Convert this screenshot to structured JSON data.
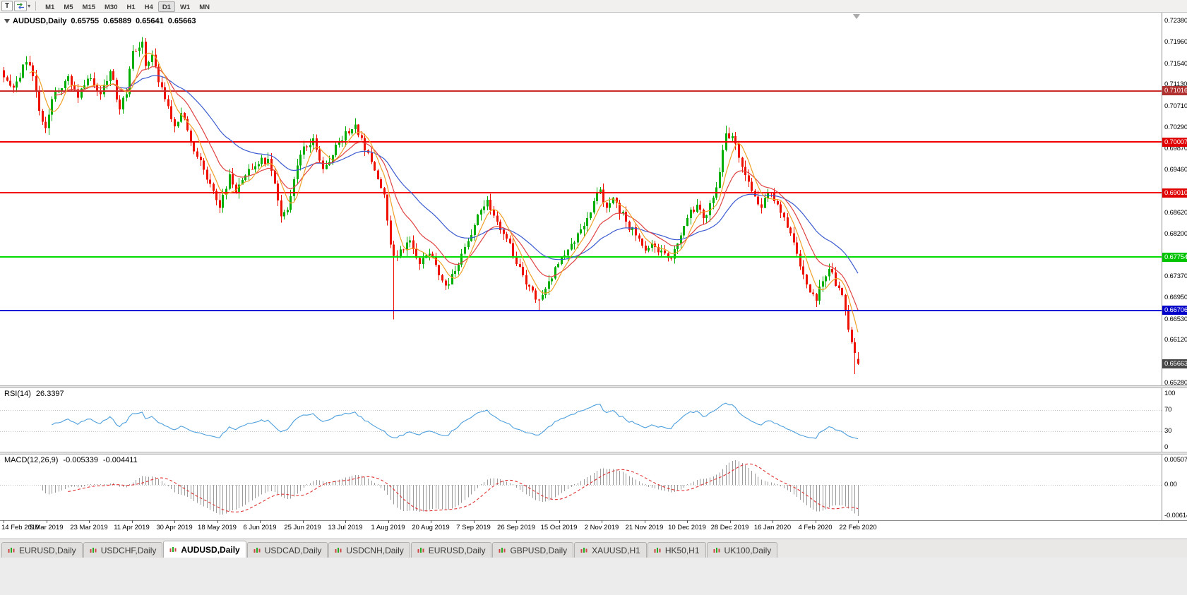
{
  "toolbar": {
    "t_button": "T",
    "timeframes": [
      "M1",
      "M5",
      "M15",
      "M30",
      "H1",
      "H4",
      "D1",
      "W1",
      "MN"
    ],
    "active_timeframe": "D1"
  },
  "chart": {
    "symbol_period": "AUDUSD,Daily",
    "open": "0.65755",
    "high": "0.65889",
    "low": "0.65641",
    "close": "0.65663"
  },
  "price_axis": {
    "ticks": [
      "0.72380",
      "0.71960",
      "0.71540",
      "0.71130",
      "0.70710",
      "0.70290",
      "0.69870",
      "0.69460",
      "0.69040",
      "0.68620",
      "0.68200",
      "0.67790",
      "0.67370",
      "0.66950",
      "0.66530",
      "0.66120",
      "0.65700",
      "0.65280"
    ]
  },
  "hlines": [
    {
      "price": 0.71016,
      "label": "0.71016",
      "line": "#cc2929",
      "bg": "#b03030"
    },
    {
      "price": 0.70007,
      "label": "0.70007",
      "line": "#f20000",
      "bg": "#e00000"
    },
    {
      "price": 0.6901,
      "label": "0.69010",
      "line": "#f20000",
      "bg": "#e00000"
    },
    {
      "price": 0.67754,
      "label": "0.67754",
      "line": "#00dc00",
      "bg": "#00c400"
    },
    {
      "price": 0.66706,
      "label": "0.66706",
      "line": "#0000d8",
      "bg": "#0000c8"
    }
  ],
  "current_price": {
    "price": 0.65663,
    "label": "0.65663",
    "bg": "#474747"
  },
  "dates": [
    "14 Feb 2019",
    "5 Mar 2019",
    "23 Mar 2019",
    "11 Apr 2019",
    "30 Apr 2019",
    "18 May 2019",
    "6 Jun 2019",
    "25 Jun 2019",
    "13 Jul 2019",
    "1 Aug 2019",
    "20 Aug 2019",
    "7 Sep 2019",
    "26 Sep 2019",
    "15 Oct 2019",
    "2 Nov 2019",
    "21 Nov 2019",
    "10 Dec 2019",
    "28 Dec 2019",
    "16 Jan 2020",
    "4 Feb 2020",
    "22 Feb 2020"
  ],
  "rsi_panel": {
    "name": "RSI(14)",
    "value": "26.3397",
    "levels": [
      {
        "v": 100,
        "label": "100"
      },
      {
        "v": 70,
        "label": "70"
      },
      {
        "v": 30,
        "label": "30"
      },
      {
        "v": 0,
        "label": "0"
      }
    ],
    "line_color": "#4d9fdd",
    "level_color": "#c6c6c6"
  },
  "macd_panel": {
    "name": "MACD(12,26,9)",
    "value_main": "-0.005339",
    "value_signal": "-0.004411",
    "axis_max": "0.005076",
    "axis_zero": "0.00",
    "axis_min": "-0.006148",
    "hist_color": "#9a9a9a",
    "signal_color": "#e03030"
  },
  "tabs": [
    {
      "label": "EURUSD,Daily",
      "active": false
    },
    {
      "label": "USDCHF,Daily",
      "active": false
    },
    {
      "label": "AUDUSD,Daily",
      "active": true
    },
    {
      "label": "USDCAD,Daily",
      "active": false
    },
    {
      "label": "USDCNH,Daily",
      "active": false
    },
    {
      "label": "EURUSD,Daily",
      "active": false
    },
    {
      "label": "GBPUSD,Daily",
      "active": false
    },
    {
      "label": "XAUUSD,H1",
      "active": false
    },
    {
      "label": "HK50,H1",
      "active": false
    },
    {
      "label": "UK100,Daily",
      "active": false
    }
  ],
  "chart_data": {
    "type": "candlestick",
    "symbol": "AUDUSD",
    "timeframe": "Daily",
    "n_candles": 266,
    "price_range": [
      0.6528,
      0.7238
    ],
    "colors": {
      "up": "#00ae00",
      "down": "#ee1100"
    },
    "date_labels": [
      "14 Feb 2019",
      "5 Mar 2019",
      "23 Mar 2019",
      "11 Apr 2019",
      "30 Apr 2019",
      "18 May 2019",
      "6 Jun 2019",
      "25 Jun 2019",
      "13 Jul 2019",
      "1 Aug 2019",
      "20 Aug 2019",
      "7 Sep 2019",
      "26 Sep 2019",
      "15 Oct 2019",
      "2 Nov 2019",
      "21 Nov 2019",
      "10 Dec 2019",
      "28 Dec 2019",
      "16 Jan 2020",
      "4 Feb 2020",
      "22 Feb 2020"
    ],
    "close_anchors": [
      [
        0,
        0.7128
      ],
      [
        3,
        0.7108
      ],
      [
        7,
        0.7158
      ],
      [
        9,
        0.713
      ],
      [
        11,
        0.7062
      ],
      [
        13,
        0.7028
      ],
      [
        16,
        0.71
      ],
      [
        20,
        0.713
      ],
      [
        23,
        0.7088
      ],
      [
        26,
        0.7125
      ],
      [
        30,
        0.7095
      ],
      [
        33,
        0.714
      ],
      [
        36,
        0.7065
      ],
      [
        38,
        0.7095
      ],
      [
        40,
        0.718
      ],
      [
        43,
        0.7198
      ],
      [
        44,
        0.715
      ],
      [
        46,
        0.7172
      ],
      [
        48,
        0.7118
      ],
      [
        50,
        0.7085
      ],
      [
        53,
        0.7032
      ],
      [
        55,
        0.7058
      ],
      [
        58,
        0.7002
      ],
      [
        61,
        0.6965
      ],
      [
        65,
        0.6905
      ],
      [
        67,
        0.6872
      ],
      [
        70,
        0.6938
      ],
      [
        72,
        0.6902
      ],
      [
        76,
        0.6948
      ],
      [
        79,
        0.6958
      ],
      [
        82,
        0.6968
      ],
      [
        84,
        0.692
      ],
      [
        86,
        0.6855
      ],
      [
        88,
        0.6868
      ],
      [
        90,
        0.6928
      ],
      [
        93,
        0.6992
      ],
      [
        96,
        0.7008
      ],
      [
        99,
        0.6948
      ],
      [
        102,
        0.6975
      ],
      [
        104,
        0.7002
      ],
      [
        106,
        0.7022
      ],
      [
        109,
        0.7035
      ],
      [
        112,
        0.6985
      ],
      [
        115,
        0.6945
      ],
      [
        118,
        0.6898
      ],
      [
        120,
        0.68
      ],
      [
        121,
        0.6778
      ],
      [
        123,
        0.679
      ],
      [
        126,
        0.6808
      ],
      [
        129,
        0.6762
      ],
      [
        132,
        0.6782
      ],
      [
        135,
        0.674
      ],
      [
        138,
        0.6722
      ],
      [
        140,
        0.6748
      ],
      [
        143,
        0.6795
      ],
      [
        146,
        0.6838
      ],
      [
        148,
        0.6868
      ],
      [
        150,
        0.6888
      ],
      [
        153,
        0.6845
      ],
      [
        156,
        0.6812
      ],
      [
        159,
        0.6762
      ],
      [
        161,
        0.674
      ],
      [
        164,
        0.671
      ],
      [
        166,
        0.6692
      ],
      [
        169,
        0.6728
      ],
      [
        172,
        0.6762
      ],
      [
        175,
        0.679
      ],
      [
        178,
        0.6822
      ],
      [
        181,
        0.6852
      ],
      [
        183,
        0.6885
      ],
      [
        185,
        0.6908
      ],
      [
        187,
        0.6872
      ],
      [
        189,
        0.6892
      ],
      [
        193,
        0.6845
      ],
      [
        196,
        0.6818
      ],
      [
        199,
        0.6788
      ],
      [
        201,
        0.6802
      ],
      [
        204,
        0.6788
      ],
      [
        207,
        0.6772
      ],
      [
        210,
        0.6818
      ],
      [
        212,
        0.6852
      ],
      [
        215,
        0.6878
      ],
      [
        217,
        0.6852
      ],
      [
        220,
        0.6892
      ],
      [
        222,
        0.6942
      ],
      [
        224,
        0.7018
      ],
      [
        227,
        0.6998
      ],
      [
        229,
        0.6952
      ],
      [
        232,
        0.6905
      ],
      [
        235,
        0.6872
      ],
      [
        237,
        0.6902
      ],
      [
        239,
        0.6885
      ],
      [
        241,
        0.6862
      ],
      [
        244,
        0.6822
      ],
      [
        246,
        0.6782
      ],
      [
        249,
        0.6722
      ],
      [
        252,
        0.669
      ],
      [
        254,
        0.6728
      ],
      [
        256,
        0.6752
      ],
      [
        259,
        0.6715
      ],
      [
        261,
        0.6672
      ],
      [
        263,
        0.6608
      ],
      [
        265,
        0.65663
      ]
    ],
    "wick_overrides": [
      {
        "i": 43,
        "high": 0.7207
      },
      {
        "i": 109,
        "high": 0.7048
      },
      {
        "i": 121,
        "low": 0.6653
      },
      {
        "i": 166,
        "low": 0.6671
      },
      {
        "i": 224,
        "high": 0.7033
      },
      {
        "i": 264,
        "low": 0.6546
      }
    ],
    "last_candle": {
      "open": 0.65755,
      "high": 0.65889,
      "low": 0.65641,
      "close": 0.65663
    },
    "moving_averages": [
      {
        "period": 6,
        "type": "sma",
        "color": "#f0a028"
      },
      {
        "period": 14,
        "type": "ema",
        "color": "#e04343"
      },
      {
        "period": 34,
        "type": "ema",
        "color": "#3b5bd0"
      }
    ],
    "hline_prices": [
      0.71016,
      0.70007,
      0.6901,
      0.67754,
      0.66706
    ],
    "rsi": {
      "period": 14,
      "current": 26.3397,
      "levels": [
        70,
        30
      ]
    },
    "macd": {
      "fast": 12,
      "slow": 26,
      "signal": 9,
      "current_main": -0.005339,
      "current_signal": -0.004411,
      "axis_max": 0.005076,
      "axis_min": -0.006148
    }
  }
}
